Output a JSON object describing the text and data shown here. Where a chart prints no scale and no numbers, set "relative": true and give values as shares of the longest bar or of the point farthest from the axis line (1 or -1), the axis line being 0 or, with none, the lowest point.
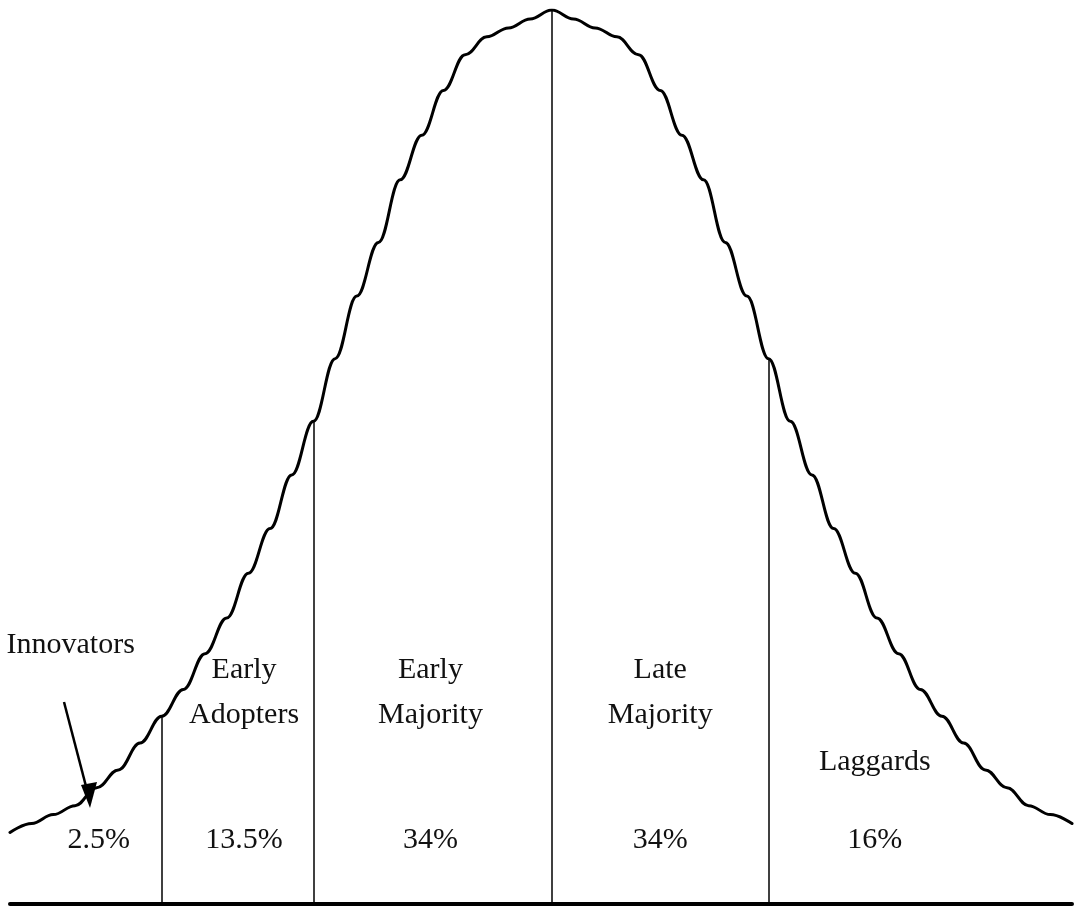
{
  "chart_data": {
    "type": "line",
    "relative": true,
    "color": "#000000",
    "marker": "none",
    "grid": false,
    "tick_labels": false,
    "categories": [
      null,
      null,
      null,
      null,
      null,
      null,
      null,
      null,
      null,
      null,
      null,
      null,
      null,
      null,
      null,
      null,
      null,
      null,
      null,
      null,
      null,
      null,
      null,
      null,
      null,
      null,
      null,
      null,
      null,
      null,
      null,
      null,
      null,
      null,
      null,
      null,
      null,
      null,
      null,
      null,
      null,
      null,
      null,
      null,
      null,
      null,
      null,
      null,
      null,
      null
    ],
    "values": [
      0.08,
      0.09,
      0.1,
      0.11,
      0.13,
      0.15,
      0.18,
      0.21,
      0.24,
      0.28,
      0.32,
      0.37,
      0.42,
      0.48,
      0.54,
      0.61,
      0.68,
      0.74,
      0.81,
      0.86,
      0.91,
      0.95,
      0.97,
      0.98,
      0.99,
      1,
      0.99,
      0.98,
      0.97,
      0.95,
      0.91,
      0.86,
      0.81,
      0.74,
      0.68,
      0.61,
      0.54,
      0.48,
      0.42,
      0.37,
      0.32,
      0.28,
      0.24,
      0.21,
      0.18,
      0.15,
      0.13,
      0.11,
      0.1,
      0.09
    ],
    "annotations": [
      "Innovators",
      "2.5%",
      "Early Adopters",
      "13.5%",
      "Early Majority",
      "34%",
      "Late Majority",
      "34%",
      "Laggards",
      "16%"
    ]
  }
}
